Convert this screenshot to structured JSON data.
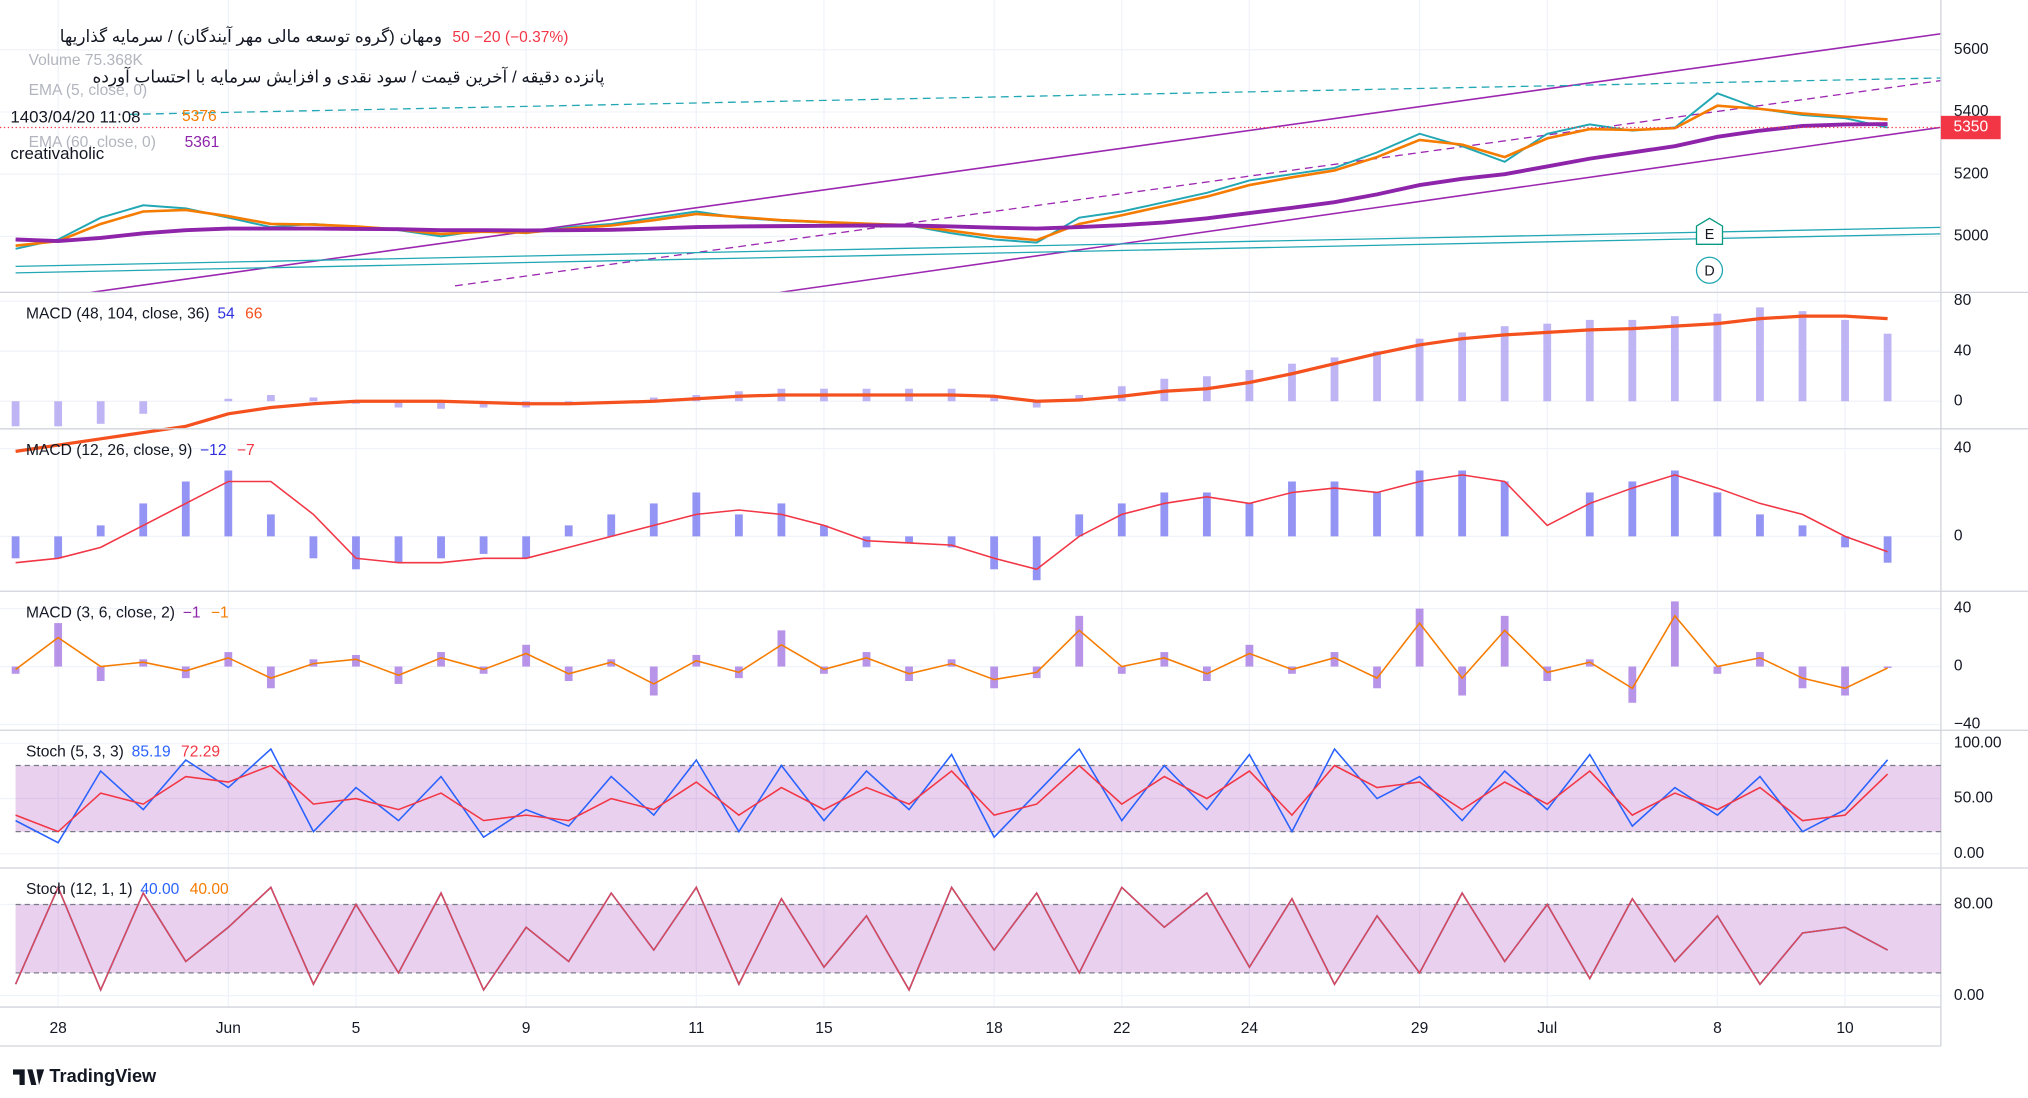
{
  "header": {
    "title": "ومهان (گروه توسعه مالی مهر آیندگان) / سرمایه گذاریها",
    "change": "50  −20 (−0.37%)",
    "subtitle": "پانزده دقیقه / آخرین قیمت / سود نقدی و افزایش سرمایه با احتساب آورده",
    "datetime": "1403/04/20 11:08",
    "author": "creativaholic",
    "volume": "Volume 75.368K",
    "brand": "TradingView"
  },
  "chart_data": [
    {
      "type": "line",
      "title": "Price",
      "categories": [
        null,
        "28",
        null,
        null,
        null,
        "Jun",
        null,
        null,
        "5",
        null,
        null,
        null,
        "9",
        null,
        null,
        null,
        "11",
        null,
        null,
        "15",
        null,
        null,
        null,
        "18",
        null,
        null,
        "22",
        null,
        null,
        "24",
        null,
        null,
        null,
        "29",
        null,
        null,
        "Jul",
        null,
        null,
        null,
        "8",
        null,
        null,
        "10",
        null
      ],
      "close": [
        4960,
        4990,
        5060,
        5100,
        5090,
        5060,
        5030,
        5040,
        5030,
        5020,
        5000,
        5020,
        5010,
        5030,
        5040,
        5060,
        5080,
        5060,
        5050,
        5045,
        5040,
        5035,
        5010,
        4990,
        4980,
        5060,
        5080,
        5110,
        5140,
        5180,
        5200,
        5220,
        5270,
        5330,
        5290,
        5240,
        5330,
        5360,
        5340,
        5350,
        5460,
        5410,
        5390,
        5380,
        5350
      ],
      "close_color": "#22a7b4",
      "series": [
        {
          "name": "EMA (5, close, 0)",
          "color": "#f57c00",
          "legend_value": "5376",
          "values": [
            4970,
            4985,
            5040,
            5080,
            5085,
            5065,
            5040,
            5038,
            5032,
            5022,
            5008,
            5015,
            5012,
            5025,
            5035,
            5052,
            5072,
            5062,
            5052,
            5046,
            5041,
            5036,
            5018,
            5000,
            4988,
            5040,
            5068,
            5098,
            5128,
            5165,
            5190,
            5212,
            5255,
            5310,
            5295,
            5255,
            5315,
            5345,
            5342,
            5348,
            5420,
            5410,
            5395,
            5385,
            5376
          ]
        },
        {
          "name": "EMA (60, close, 0)",
          "color": "#8e24aa",
          "legend_value": "5361",
          "values": [
            4990,
            4985,
            4995,
            5010,
            5020,
            5025,
            5025,
            5025,
            5024,
            5023,
            5020,
            5020,
            5019,
            5020,
            5021,
            5025,
            5030,
            5032,
            5033,
            5034,
            5035,
            5035,
            5032,
            5028,
            5025,
            5030,
            5036,
            5045,
            5058,
            5075,
            5092,
            5110,
            5135,
            5165,
            5185,
            5200,
            5225,
            5250,
            5270,
            5290,
            5320,
            5340,
            5355,
            5360,
            5361
          ]
        }
      ],
      "last_price": 5350,
      "last_price_color": "#f23645",
      "ylim": [
        4820,
        5760
      ],
      "yticks": [
        5000,
        5200,
        5400,
        5600
      ]
    },
    {
      "type": "macd",
      "title": "MACD (48, 104, close, 36)",
      "series": [
        {
          "style": "bar",
          "color": "#a99cf0",
          "legend_value": "54",
          "legend_color": "#3030e0",
          "values": [
            -20,
            -20,
            -18,
            -10,
            0,
            2,
            5,
            3,
            -2,
            -5,
            -6,
            -5,
            -5,
            -3,
            0,
            3,
            5,
            8,
            10,
            10,
            10,
            10,
            10,
            5,
            -5,
            5,
            12,
            18,
            20,
            25,
            30,
            35,
            40,
            50,
            55,
            60,
            62,
            65,
            65,
            68,
            70,
            75,
            72,
            65,
            54
          ]
        },
        {
          "style": "line",
          "color": "#f4511e",
          "width": 2.5,
          "legend_value": "66",
          "legend_color": "#f4511e",
          "values": [
            -40,
            -35,
            -30,
            -25,
            -20,
            -10,
            -5,
            -2,
            0,
            0,
            0,
            -1,
            -2,
            -2,
            -1,
            0,
            2,
            4,
            5,
            5,
            5,
            5,
            5,
            4,
            0,
            1,
            4,
            8,
            10,
            15,
            22,
            30,
            38,
            45,
            50,
            53,
            55,
            57,
            58,
            60,
            62,
            66,
            68,
            68,
            66
          ]
        }
      ],
      "ylim": [
        -22,
        87
      ],
      "yticks": [
        0,
        40,
        80
      ]
    },
    {
      "type": "macd",
      "title": "MACD (12, 26, close, 9)",
      "series": [
        {
          "style": "bar",
          "color": "#7070f0",
          "legend_value": "−12",
          "legend_color": "#3030e0",
          "values": [
            -10,
            -10,
            5,
            15,
            25,
            30,
            10,
            -10,
            -15,
            -12,
            -10,
            -8,
            -10,
            5,
            10,
            15,
            20,
            10,
            15,
            5,
            -5,
            -3,
            -5,
            -15,
            -20,
            10,
            15,
            20,
            20,
            15,
            25,
            25,
            20,
            30,
            30,
            25,
            0,
            20,
            25,
            30,
            20,
            10,
            5,
            -5,
            -12
          ]
        },
        {
          "style": "line",
          "color": "#f23645",
          "width": 1.2,
          "legend_value": "−7",
          "legend_color": "#f23645",
          "values": [
            -12,
            -10,
            -5,
            5,
            15,
            25,
            25,
            10,
            -10,
            -12,
            -12,
            -10,
            -10,
            -5,
            0,
            5,
            10,
            12,
            10,
            5,
            -2,
            -3,
            -4,
            -10,
            -15,
            0,
            10,
            15,
            18,
            15,
            20,
            22,
            20,
            25,
            28,
            25,
            5,
            15,
            22,
            28,
            22,
            15,
            10,
            0,
            -7
          ]
        }
      ],
      "ylim": [
        -25,
        49
      ],
      "yticks": [
        0,
        40
      ]
    },
    {
      "type": "macd",
      "title": "MACD (3, 6, close, 2)",
      "series": [
        {
          "style": "bar",
          "color": "#a070e0",
          "legend_value": "−1",
          "legend_color": "#8e24aa",
          "values": [
            -5,
            30,
            -10,
            5,
            -8,
            10,
            -15,
            5,
            8,
            -12,
            10,
            -5,
            15,
            -10,
            5,
            -20,
            8,
            -8,
            25,
            -5,
            10,
            -10,
            5,
            -15,
            -8,
            35,
            -5,
            10,
            -10,
            15,
            -5,
            10,
            -15,
            40,
            -20,
            35,
            -10,
            5,
            -25,
            45,
            -5,
            10,
            -15,
            -20,
            -1
          ]
        },
        {
          "style": "line",
          "color": "#f57c00",
          "width": 1.2,
          "legend_value": "−1",
          "legend_color": "#f57c00",
          "values": [
            -2,
            20,
            0,
            3,
            -3,
            6,
            -8,
            2,
            5,
            -6,
            6,
            -2,
            9,
            -5,
            3,
            -12,
            4,
            -4,
            15,
            -2,
            6,
            -5,
            2,
            -9,
            -4,
            25,
            0,
            6,
            -5,
            9,
            -2,
            6,
            -8,
            30,
            -8,
            25,
            -4,
            3,
            -15,
            35,
            0,
            6,
            -8,
            -15,
            -1
          ]
        }
      ],
      "ylim": [
        -44,
        52
      ],
      "yticks": [
        {
          "value": -40,
          "label": "−40"
        },
        0,
        40
      ]
    },
    {
      "type": "stoch",
      "title": "Stoch (5, 3, 3)",
      "band": [
        20,
        80
      ],
      "band_color": "#9c27b0",
      "series": [
        {
          "style": "line",
          "color": "#2962ff",
          "width": 1.2,
          "legend_value": "85.19",
          "legend_color": "#2962ff",
          "values": [
            30,
            10,
            75,
            40,
            85,
            60,
            95,
            20,
            60,
            30,
            70,
            15,
            40,
            25,
            70,
            35,
            85,
            20,
            80,
            30,
            75,
            40,
            90,
            15,
            55,
            95,
            30,
            80,
            40,
            90,
            20,
            95,
            50,
            70,
            30,
            75,
            40,
            90,
            25,
            60,
            35,
            70,
            20,
            40,
            85.19
          ]
        },
        {
          "style": "line",
          "color": "#f23645",
          "width": 1.2,
          "legend_value": "72.29",
          "legend_color": "#f23645",
          "values": [
            35,
            20,
            55,
            45,
            70,
            65,
            80,
            45,
            50,
            40,
            55,
            30,
            35,
            30,
            50,
            40,
            65,
            35,
            60,
            40,
            60,
            45,
            75,
            35,
            45,
            80,
            45,
            70,
            50,
            75,
            35,
            80,
            60,
            65,
            40,
            65,
            45,
            75,
            35,
            55,
            40,
            60,
            30,
            35,
            72.29
          ]
        }
      ],
      "ylim": [
        -13,
        112
      ],
      "yticks": [
        {
          "value": 0,
          "label": "0.00"
        },
        {
          "value": 50,
          "label": "50.00"
        },
        {
          "value": 100,
          "label": "100.00"
        }
      ]
    },
    {
      "type": "stoch",
      "title": "Stoch (12, 1, 1)",
      "band": [
        20,
        80
      ],
      "band_color": "#9c27b0",
      "series": [
        {
          "style": "line",
          "color": "#2962ff",
          "width": 1.2,
          "legend_value": "40.00",
          "legend_color": "#2962ff",
          "values": [
            10,
            95,
            5,
            90,
            30,
            60,
            95,
            10,
            80,
            20,
            90,
            5,
            60,
            30,
            90,
            40,
            95,
            10,
            85,
            25,
            70,
            5,
            95,
            40,
            90,
            20,
            95,
            60,
            90,
            25,
            85,
            10,
            70,
            20,
            90,
            30,
            80,
            15,
            85,
            30,
            70,
            10,
            55,
            60,
            40
          ]
        },
        {
          "style": "line",
          "color": "#d84a5a",
          "width": 1.2,
          "legend_value": "40.00",
          "legend_color": "#f57c00",
          "values": [
            10,
            95,
            5,
            90,
            30,
            60,
            95,
            10,
            80,
            20,
            90,
            5,
            60,
            30,
            90,
            40,
            95,
            10,
            85,
            25,
            70,
            5,
            95,
            40,
            90,
            20,
            95,
            60,
            90,
            25,
            85,
            10,
            70,
            20,
            90,
            30,
            80,
            15,
            85,
            30,
            70,
            10,
            55,
            60,
            40
          ]
        }
      ],
      "ylim": [
        -10,
        112
      ],
      "yticks": [
        {
          "value": 0,
          "label": "0.00"
        },
        {
          "value": 80,
          "label": "80.00"
        }
      ]
    }
  ]
}
